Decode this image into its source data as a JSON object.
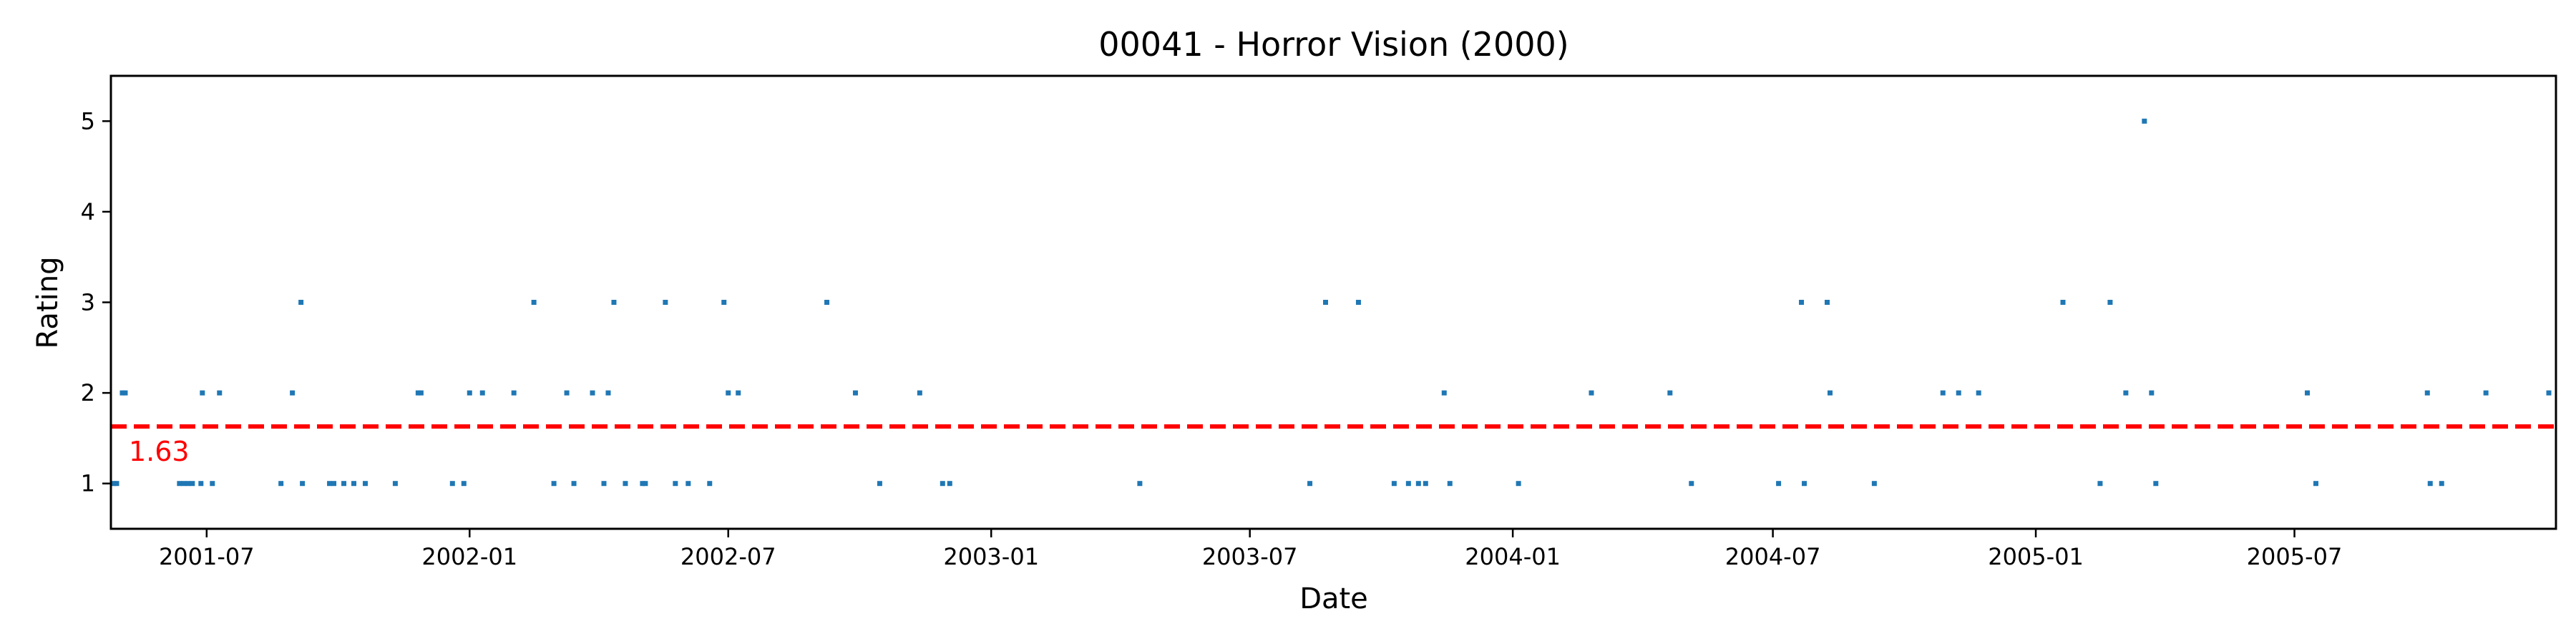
{
  "chart_data": {
    "type": "scatter",
    "title": "00041 - Horror Vision (2000)",
    "xlabel": "Date",
    "ylabel": "Rating",
    "xlim": [
      "2001-04-25",
      "2005-12-31"
    ],
    "ylim": [
      0.5,
      5.5
    ],
    "x_ticks": [
      "2001-07",
      "2002-01",
      "2002-07",
      "2003-01",
      "2003-07",
      "2004-01",
      "2004-07",
      "2005-01",
      "2005-07"
    ],
    "y_ticks": [
      1,
      2,
      3,
      4,
      5
    ],
    "grid": false,
    "point_color": "#1f77b4",
    "mean_line": {
      "value": 1.63,
      "label": "1.63",
      "color": "#ff0000",
      "style": "dashed"
    },
    "points": [
      {
        "x": "2001-04-27",
        "y": 1
      },
      {
        "x": "2001-04-29",
        "y": 1
      },
      {
        "x": "2001-05-03",
        "y": 2
      },
      {
        "x": "2001-05-05",
        "y": 2
      },
      {
        "x": "2001-06-12",
        "y": 1
      },
      {
        "x": "2001-06-15",
        "y": 1
      },
      {
        "x": "2001-06-18",
        "y": 1
      },
      {
        "x": "2001-06-21",
        "y": 1
      },
      {
        "x": "2001-06-27",
        "y": 1
      },
      {
        "x": "2001-06-28",
        "y": 2
      },
      {
        "x": "2001-07-05",
        "y": 1
      },
      {
        "x": "2001-07-10",
        "y": 2
      },
      {
        "x": "2001-08-22",
        "y": 1
      },
      {
        "x": "2001-08-30",
        "y": 2
      },
      {
        "x": "2001-09-05",
        "y": 3
      },
      {
        "x": "2001-09-06",
        "y": 1
      },
      {
        "x": "2001-09-25",
        "y": 1
      },
      {
        "x": "2001-09-28",
        "y": 1
      },
      {
        "x": "2001-10-05",
        "y": 1
      },
      {
        "x": "2001-10-12",
        "y": 1
      },
      {
        "x": "2001-10-20",
        "y": 1
      },
      {
        "x": "2001-11-10",
        "y": 1
      },
      {
        "x": "2001-11-26",
        "y": 2
      },
      {
        "x": "2001-11-28",
        "y": 2
      },
      {
        "x": "2001-12-20",
        "y": 1
      },
      {
        "x": "2001-12-28",
        "y": 1
      },
      {
        "x": "2002-01-01",
        "y": 2
      },
      {
        "x": "2002-01-10",
        "y": 2
      },
      {
        "x": "2002-02-01",
        "y": 2
      },
      {
        "x": "2002-02-15",
        "y": 3
      },
      {
        "x": "2002-03-01",
        "y": 1
      },
      {
        "x": "2002-03-10",
        "y": 2
      },
      {
        "x": "2002-03-15",
        "y": 1
      },
      {
        "x": "2002-03-28",
        "y": 2
      },
      {
        "x": "2002-04-05",
        "y": 1
      },
      {
        "x": "2002-04-08",
        "y": 2
      },
      {
        "x": "2002-04-12",
        "y": 3
      },
      {
        "x": "2002-04-20",
        "y": 1
      },
      {
        "x": "2002-05-02",
        "y": 1
      },
      {
        "x": "2002-05-04",
        "y": 1
      },
      {
        "x": "2002-05-18",
        "y": 3
      },
      {
        "x": "2002-05-25",
        "y": 1
      },
      {
        "x": "2002-06-03",
        "y": 1
      },
      {
        "x": "2002-06-18",
        "y": 1
      },
      {
        "x": "2002-06-28",
        "y": 3
      },
      {
        "x": "2002-07-01",
        "y": 2
      },
      {
        "x": "2002-07-08",
        "y": 2
      },
      {
        "x": "2002-09-08",
        "y": 3
      },
      {
        "x": "2002-09-28",
        "y": 2
      },
      {
        "x": "2002-10-15",
        "y": 1
      },
      {
        "x": "2002-11-12",
        "y": 2
      },
      {
        "x": "2002-11-28",
        "y": 1
      },
      {
        "x": "2002-12-03",
        "y": 1
      },
      {
        "x": "2003-04-15",
        "y": 1
      },
      {
        "x": "2003-08-12",
        "y": 1
      },
      {
        "x": "2003-08-23",
        "y": 3
      },
      {
        "x": "2003-09-15",
        "y": 3
      },
      {
        "x": "2003-10-10",
        "y": 1
      },
      {
        "x": "2003-10-20",
        "y": 1
      },
      {
        "x": "2003-10-27",
        "y": 1
      },
      {
        "x": "2003-11-01",
        "y": 1
      },
      {
        "x": "2003-11-14",
        "y": 2
      },
      {
        "x": "2003-11-18",
        "y": 1
      },
      {
        "x": "2004-01-05",
        "y": 1
      },
      {
        "x": "2004-02-25",
        "y": 2
      },
      {
        "x": "2004-04-20",
        "y": 2
      },
      {
        "x": "2004-05-05",
        "y": 1
      },
      {
        "x": "2004-07-05",
        "y": 1
      },
      {
        "x": "2004-07-21",
        "y": 3
      },
      {
        "x": "2004-07-23",
        "y": 1
      },
      {
        "x": "2004-08-08",
        "y": 3
      },
      {
        "x": "2004-08-10",
        "y": 2
      },
      {
        "x": "2004-09-10",
        "y": 1
      },
      {
        "x": "2004-10-28",
        "y": 2
      },
      {
        "x": "2004-11-08",
        "y": 2
      },
      {
        "x": "2004-11-22",
        "y": 2
      },
      {
        "x": "2005-01-20",
        "y": 3
      },
      {
        "x": "2005-02-15",
        "y": 1
      },
      {
        "x": "2005-02-22",
        "y": 3
      },
      {
        "x": "2005-03-05",
        "y": 2
      },
      {
        "x": "2005-03-18",
        "y": 5
      },
      {
        "x": "2005-03-23",
        "y": 2
      },
      {
        "x": "2005-03-26",
        "y": 1
      },
      {
        "x": "2005-07-10",
        "y": 2
      },
      {
        "x": "2005-07-16",
        "y": 1
      },
      {
        "x": "2005-10-02",
        "y": 2
      },
      {
        "x": "2005-10-04",
        "y": 1
      },
      {
        "x": "2005-10-12",
        "y": 1
      },
      {
        "x": "2005-11-12",
        "y": 2
      },
      {
        "x": "2005-12-26",
        "y": 2
      }
    ]
  }
}
